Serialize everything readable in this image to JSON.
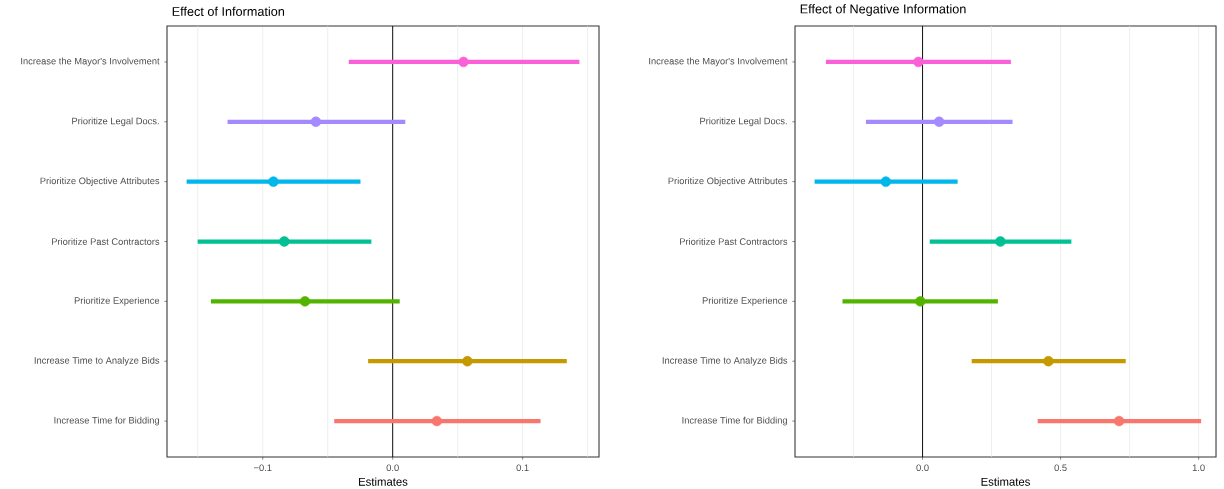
{
  "chart_data": [
    {
      "type": "scatter",
      "orientation": "horizontal",
      "title": "Effect of Information",
      "xlabel": "Estimates",
      "categories": [
        "Increase the Mayor's Involvement",
        "Prioritize Legal Docs.",
        "Prioritize Objective Attributes",
        "Prioritize Past Contractors",
        "Prioritize Experience",
        "Increase Time to Analyze Bids",
        "Increase Time for Bidding"
      ],
      "values": [
        0.0545,
        -0.0591,
        -0.0918,
        -0.0834,
        -0.0675,
        0.0575,
        0.034
      ],
      "errors": [
        [
          -0.0338,
          0.1437
        ],
        [
          -0.1271,
          0.0097
        ],
        [
          -0.1586,
          -0.0248
        ],
        [
          -0.1501,
          -0.0164
        ],
        [
          -0.1399,
          0.0054
        ],
        [
          -0.0189,
          0.134
        ],
        [
          -0.045,
          0.1138
        ]
      ],
      "colors": [
        "#fb61d7",
        "#a58aff",
        "#00b6eb",
        "#00c094",
        "#53b400",
        "#c49a00",
        "#f8766d"
      ],
      "xlim": [
        -0.1737,
        0.1588
      ],
      "xticks": [
        {
          "value": -0.15,
          "label": null
        },
        {
          "value": -0.1,
          "label": "−0.1"
        },
        {
          "value": -0.05,
          "label": null
        },
        {
          "value": 0,
          "label": "0.0"
        },
        {
          "value": 0.05,
          "label": null
        },
        {
          "value": 0.1,
          "label": "0.1"
        },
        {
          "value": 0.15,
          "label": null
        }
      ],
      "grid": "x",
      "marker": "circle",
      "ref_lines": [
        {
          "axis": "x",
          "value": 0,
          "color": "#000000"
        }
      ]
    },
    {
      "type": "scatter",
      "orientation": "horizontal",
      "title": "Effect of Negative Information",
      "xlabel": "Estimates",
      "categories": [
        "Increase the Mayor's Involvement",
        "Prioritize Legal Docs.",
        "Prioritize Objective Attributes",
        "Prioritize Past Contractors",
        "Prioritize Experience",
        "Increase Time to Analyze Bids",
        "Increase Time for Bidding"
      ],
      "values": [
        -0.015,
        0.06,
        -0.133,
        0.282,
        -0.008,
        0.456,
        0.712
      ],
      "errors": [
        [
          -0.35,
          0.32
        ],
        [
          -0.205,
          0.326
        ],
        [
          -0.391,
          0.127
        ],
        [
          0.026,
          0.539
        ],
        [
          -0.29,
          0.273
        ],
        [
          0.178,
          0.736
        ],
        [
          0.417,
          1.009
        ]
      ],
      "colors": [
        "#fb61d7",
        "#a58aff",
        "#00b6eb",
        "#00c094",
        "#53b400",
        "#c49a00",
        "#f8766d"
      ],
      "xlim": [
        -0.462,
        1.063
      ],
      "xticks": [
        {
          "value": -0.25,
          "label": null
        },
        {
          "value": 0,
          "label": "0.0"
        },
        {
          "value": 0.25,
          "label": null
        },
        {
          "value": 0.5,
          "label": "0.5"
        },
        {
          "value": 0.75,
          "label": null
        },
        {
          "value": 1.0,
          "label": "1.0"
        }
      ],
      "grid": "x",
      "marker": "circle",
      "ref_lines": [
        {
          "axis": "x",
          "value": 0,
          "color": "#000000"
        }
      ]
    }
  ]
}
